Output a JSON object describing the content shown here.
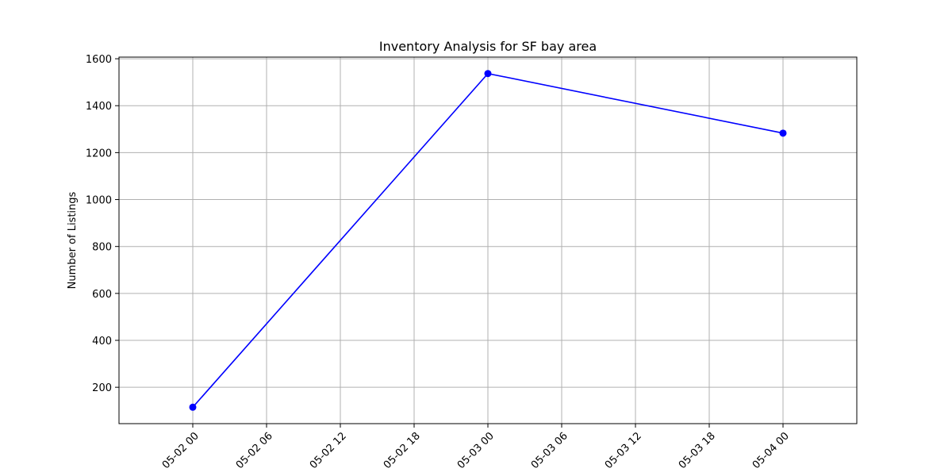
{
  "chart_data": {
    "type": "line",
    "title": "Inventory Analysis for SF bay area",
    "xlabel": "",
    "ylabel": "Number of Listings",
    "x": [
      "2024-05-02T00:00",
      "2024-05-03T00:00",
      "2024-05-04T00:00"
    ],
    "series": [
      {
        "values": [
          115,
          1537,
          1283
        ],
        "color": "#0000ff",
        "marker": "circle"
      }
    ],
    "xlim": [
      "2024-05-01T18:00",
      "2024-05-04T06:00"
    ],
    "ylim": [
      45,
      1607
    ],
    "x_ticks": [
      "2024-05-02T00:00",
      "2024-05-02T06:00",
      "2024-05-02T12:00",
      "2024-05-02T18:00",
      "2024-05-03T00:00",
      "2024-05-03T06:00",
      "2024-05-03T12:00",
      "2024-05-03T18:00",
      "2024-05-04T00:00"
    ],
    "x_tick_labels": [
      "05-02 00",
      "05-02 06",
      "05-02 12",
      "05-02 18",
      "05-03 00",
      "05-03 06",
      "05-03 12",
      "05-03 18",
      "05-04 00"
    ],
    "y_ticks": [
      200,
      400,
      600,
      800,
      1000,
      1200,
      1400,
      1600
    ],
    "y_tick_labels": [
      "200",
      "400",
      "600",
      "800",
      "1000",
      "1200",
      "1400",
      "1600"
    ],
    "grid": true,
    "grid_color": "#b0b0b0",
    "legend": false
  }
}
